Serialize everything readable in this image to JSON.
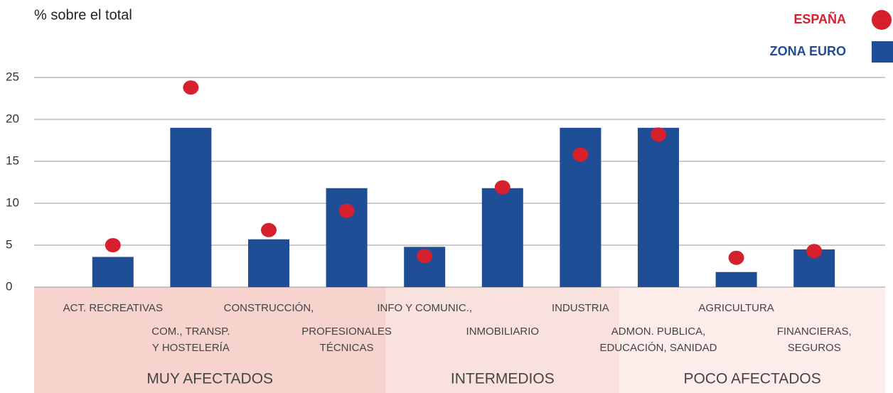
{
  "chart_data": {
    "type": "bar_dot",
    "title": "% sobre el total",
    "categories": [
      [
        "ACT. RECREATIVAS"
      ],
      [
        "COM., TRANSP.",
        "Y HOSTELERÍA"
      ],
      [
        "CONSTRUCCIÓN,"
      ],
      [
        "PROFESIONALES",
        "TÉCNICAS"
      ],
      [
        "INFO Y COMUNIC.,"
      ],
      [
        "INMOBILIARIO"
      ],
      [
        "INDUSTRIA"
      ],
      [
        "ADMON. PUBLICA,",
        "EDUCACIÓN, SANIDAD"
      ],
      [
        "AGRICULTURA"
      ],
      [
        "FINANCIERAS,",
        "SEGUROS"
      ]
    ],
    "series": [
      {
        "name": "ESPAÑA",
        "color": "#d7202e",
        "mark": "dot",
        "values": [
          5.0,
          23.8,
          6.8,
          9.1,
          3.7,
          11.9,
          15.8,
          18.2,
          3.5,
          4.3
        ]
      },
      {
        "name": "ZONA EURO",
        "color": "#1f4e96",
        "mark": "bar",
        "values": [
          3.6,
          19,
          5.7,
          11.8,
          4.8,
          11.8,
          19,
          19,
          1.8,
          4.5
        ]
      }
    ],
    "groups": [
      {
        "label": "MUY AFECTADOS",
        "from": 0,
        "to": 3,
        "color": "#f6d3cd"
      },
      {
        "label": "INTERMEDIOS",
        "from": 4,
        "to": 6,
        "color": "#f9e1dd"
      },
      {
        "label": "POCO AFECTADOS",
        "from": 7,
        "to": 9,
        "color": "#fcedeb"
      }
    ],
    "ylim": [
      0,
      25
    ],
    "yticks": [
      0,
      5,
      10,
      15,
      20,
      25
    ],
    "grid": true
  }
}
